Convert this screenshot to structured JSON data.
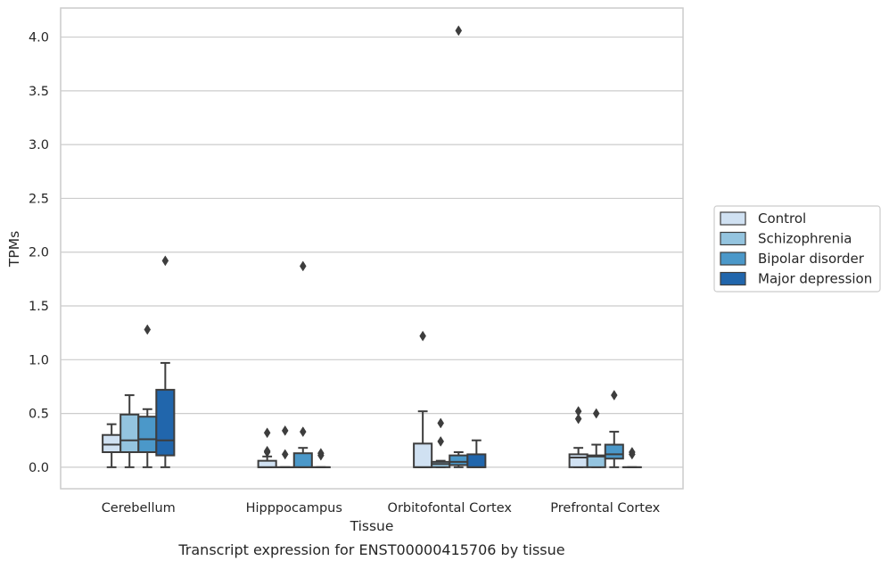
{
  "chart_data": {
    "type": "box",
    "caption": "Transcript expression for ENST00000415706 by tissue",
    "xlabel": "Tissue",
    "ylabel": "TPMs",
    "ylim": [
      -0.2,
      4.27
    ],
    "yticks": [
      "0.0",
      "0.5",
      "1.0",
      "1.5",
      "2.0",
      "2.5",
      "3.0",
      "3.5",
      "4.0"
    ],
    "grid": "horizontal",
    "legend_position": "right",
    "categories": [
      "Cerebellum",
      "Hipppocampus",
      "Orbitofontal Cortex",
      "Prefrontal Cortex"
    ],
    "series": [
      {
        "name": "Control",
        "color": "#d0e1f2",
        "boxes": [
          {
            "whislo": 0.0,
            "q1": 0.14,
            "med": 0.21,
            "q3": 0.3,
            "whishi": 0.4,
            "fliers": []
          },
          {
            "whislo": 0.0,
            "q1": 0.0,
            "med": 0.0,
            "q3": 0.06,
            "whishi": 0.1,
            "fliers": [
              0.14,
              0.15,
              0.32
            ]
          },
          {
            "whislo": 0.0,
            "q1": 0.0,
            "med": 0.0,
            "q3": 0.22,
            "whishi": 0.52,
            "fliers": [
              1.22
            ]
          },
          {
            "whislo": 0.0,
            "q1": 0.0,
            "med": 0.09,
            "q3": 0.12,
            "whishi": 0.18,
            "fliers": [
              0.45,
              0.52
            ]
          }
        ]
      },
      {
        "name": "Schizophrenia",
        "color": "#94c4df",
        "boxes": [
          {
            "whislo": 0.0,
            "q1": 0.14,
            "med": 0.25,
            "q3": 0.49,
            "whishi": 0.67,
            "fliers": []
          },
          {
            "whislo": 0.0,
            "q1": 0.0,
            "med": 0.0,
            "q3": 0.0,
            "whishi": 0.0,
            "fliers": [
              0.12,
              0.34
            ]
          },
          {
            "whislo": 0.0,
            "q1": 0.0,
            "med": 0.03,
            "q3": 0.05,
            "whishi": 0.06,
            "fliers": [
              0.24,
              0.41
            ]
          },
          {
            "whislo": 0.0,
            "q1": 0.0,
            "med": 0.1,
            "q3": 0.11,
            "whishi": 0.21,
            "fliers": [
              0.5
            ]
          }
        ]
      },
      {
        "name": "Bipolar disorder",
        "color": "#4b98c9",
        "boxes": [
          {
            "whislo": 0.0,
            "q1": 0.14,
            "med": 0.26,
            "q3": 0.47,
            "whishi": 0.54,
            "fliers": [
              1.28
            ]
          },
          {
            "whislo": 0.0,
            "q1": 0.0,
            "med": 0.0,
            "q3": 0.13,
            "whishi": 0.18,
            "fliers": [
              0.33,
              1.87
            ]
          },
          {
            "whislo": 0.0,
            "q1": 0.02,
            "med": 0.05,
            "q3": 0.11,
            "whishi": 0.14,
            "fliers": [
              4.06
            ]
          },
          {
            "whislo": 0.0,
            "q1": 0.08,
            "med": 0.12,
            "q3": 0.21,
            "whishi": 0.33,
            "fliers": [
              0.67
            ]
          }
        ]
      },
      {
        "name": "Major depression",
        "color": "#2166ac",
        "boxes": [
          {
            "whislo": 0.0,
            "q1": 0.11,
            "med": 0.25,
            "q3": 0.72,
            "whishi": 0.97,
            "fliers": [
              1.92
            ]
          },
          {
            "whislo": 0.0,
            "q1": 0.0,
            "med": 0.0,
            "q3": 0.0,
            "whishi": 0.0,
            "fliers": [
              0.11,
              0.13
            ]
          },
          {
            "whislo": 0.0,
            "q1": 0.0,
            "med": 0.0,
            "q3": 0.12,
            "whishi": 0.25,
            "fliers": []
          },
          {
            "whislo": 0.0,
            "q1": 0.0,
            "med": 0.0,
            "q3": 0.0,
            "whishi": 0.0,
            "fliers": [
              0.12,
              0.14
            ]
          }
        ]
      }
    ]
  }
}
